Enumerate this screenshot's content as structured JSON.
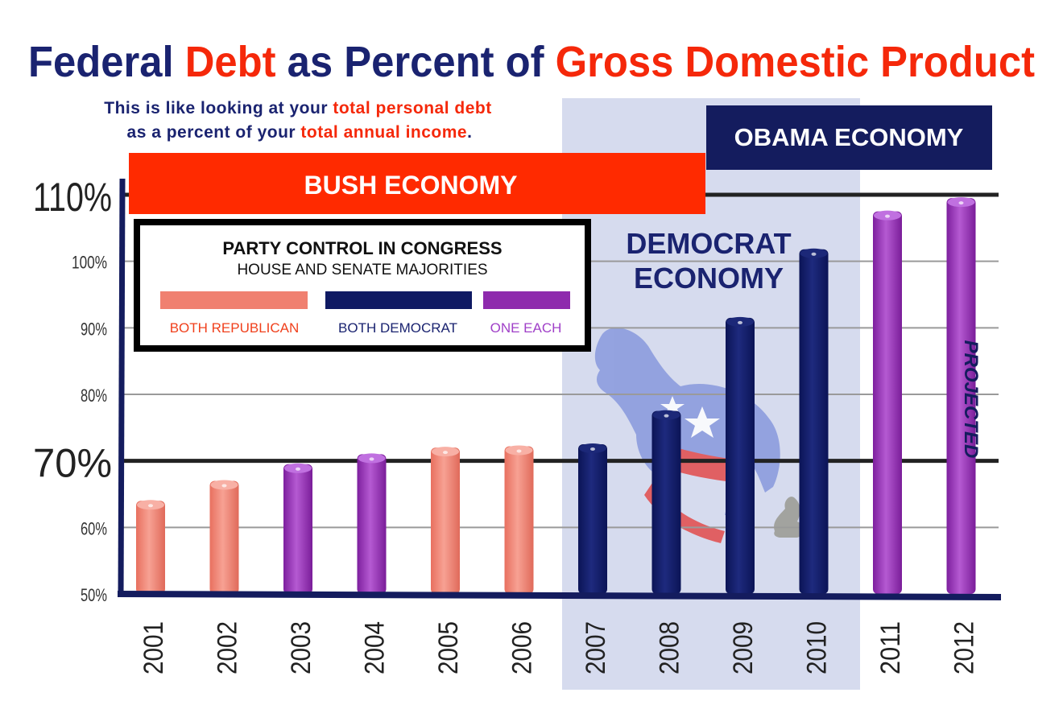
{
  "title": {
    "part1": "Federal ",
    "part2": "Debt",
    "part3": " as Percent of ",
    "part4": "Gross Domestic Product"
  },
  "subtitle": {
    "line1_a": "This is like looking at your ",
    "line1_b": "total personal debt",
    "line2_a": "as a percent of your ",
    "line2_b": "total annual income",
    "line2_c": "."
  },
  "banners": {
    "bush": "BUSH ECONOMY",
    "obama": "OBAMA ECONOMY",
    "democrat_line1": "DEMOCRAT",
    "democrat_line2": "ECONOMY"
  },
  "legend": {
    "title": "PARTY CONTROL IN CONGRESS",
    "subtitle": "HOUSE AND SENATE MAJORITIES",
    "items": [
      {
        "label": "BOTH REPUBLICAN",
        "color": "#f08070"
      },
      {
        "label": "BOTH DEMOCRAT",
        "color": "#0f1a63"
      },
      {
        "label": "ONE EACH",
        "color": "#8e2aad"
      }
    ]
  },
  "annotation_projected": "PROJECTED",
  "colors": {
    "navy": "#1a2370",
    "red": "#f5280a",
    "republican": "#f08070",
    "democrat": "#0f1a63",
    "split": "#8e2aad",
    "shade": "#d6dbee"
  },
  "chart_data": {
    "type": "bar",
    "categories": [
      "2001",
      "2002",
      "2003",
      "2004",
      "2005",
      "2006",
      "2007",
      "2008",
      "2009",
      "2010",
      "2011",
      "2012"
    ],
    "values": [
      64,
      67,
      69.5,
      71,
      72,
      72.2,
      72.5,
      77.5,
      91.5,
      101.8,
      107.5,
      109.5
    ],
    "control": [
      "republican",
      "republican",
      "split",
      "split",
      "republican",
      "republican",
      "democrat",
      "democrat",
      "democrat",
      "democrat",
      "split",
      "split"
    ],
    "ylim": [
      50,
      110
    ],
    "yticks": [
      {
        "value": 50,
        "label": "50%"
      },
      {
        "value": 60,
        "label": "60%"
      },
      {
        "value": 70,
        "label": "70%"
      },
      {
        "value": 80,
        "label": "80%"
      },
      {
        "value": 90,
        "label": "90%"
      },
      {
        "value": 100,
        "label": "100%"
      },
      {
        "value": 110,
        "label": "110%"
      }
    ],
    "grid": true,
    "shaded_range": [
      "2007",
      "2010"
    ]
  }
}
